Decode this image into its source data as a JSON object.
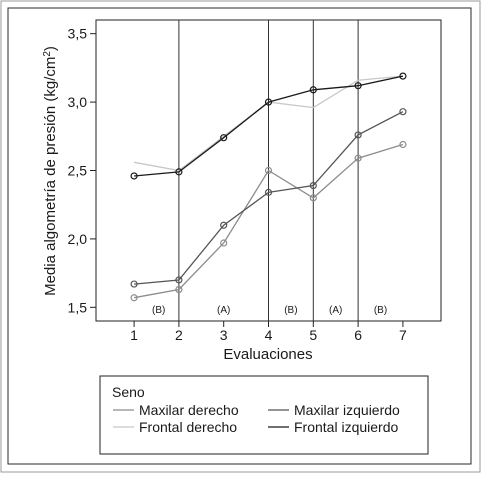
{
  "chart_data": {
    "type": "line",
    "xlabel": "Evaluaciones",
    "ylabel": "Media algometría de presión (kg/cm",
    "ylabel_sup": "2",
    "ylabel_close": ")",
    "x": [
      1,
      2,
      3,
      4,
      5,
      6,
      7
    ],
    "x_tick_labels": [
      "1",
      "2",
      "3",
      "4",
      "5",
      "6",
      "7"
    ],
    "xlim": [
      0.15,
      7.85
    ],
    "ylim": [
      1.4,
      3.6
    ],
    "y_ticks": [
      1.5,
      2.0,
      2.5,
      3.0,
      3.5
    ],
    "y_tick_labels": [
      "1,5",
      "2,0",
      "2,5",
      "3,0",
      "3,5"
    ],
    "phase_dividers": [
      2,
      4,
      5,
      6
    ],
    "phases": [
      {
        "label": "(B)",
        "x": 1.55
      },
      {
        "label": "(A)",
        "x": 3.0
      },
      {
        "label": "(B)",
        "x": 4.5
      },
      {
        "label": "(A)",
        "x": 5.5
      },
      {
        "label": "(B)",
        "x": 6.5
      }
    ],
    "legend": {
      "title": "Seno",
      "position": "bottom"
    },
    "series": [
      {
        "name": "Maxilar derecho",
        "color": "#8c8c8c",
        "values": [
          1.57,
          1.63,
          1.97,
          2.5,
          2.3,
          2.59,
          2.69
        ],
        "markers": true
      },
      {
        "name": "Maxilar izquierdo",
        "color": "#555555",
        "values": [
          1.67,
          1.7,
          2.1,
          2.34,
          2.39,
          2.76,
          2.93
        ],
        "markers": true
      },
      {
        "name": "Frontal derecho",
        "color": "#c8c8c8",
        "values": [
          2.56,
          2.5,
          null,
          3.0,
          2.96,
          3.16,
          3.19
        ],
        "markers": false
      },
      {
        "name": "Frontal izquierdo",
        "color": "#1a1a1a",
        "values": [
          2.46,
          2.49,
          2.74,
          3.0,
          3.09,
          3.12,
          3.19
        ],
        "markers": true
      }
    ]
  }
}
